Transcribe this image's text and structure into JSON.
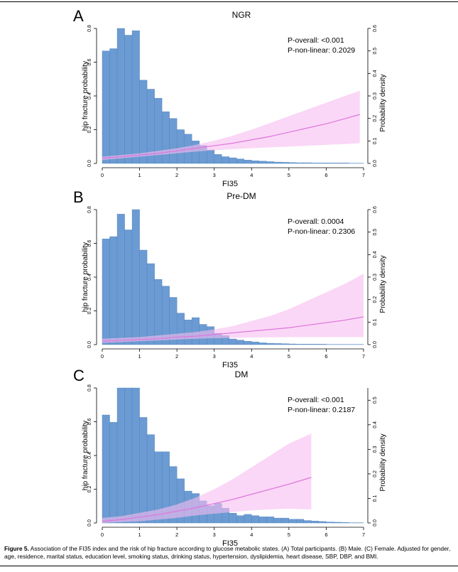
{
  "caption": {
    "label": "Figure 5.",
    "text": "Association of the FI35 index and the risk of hip fracture according to glucose metabolic states. (A) Total participants. (B) Male. (C) Female. Adjusted for gender, age, residence, marital status, education level, smoking status, drinking status, hypertension, dyslipidemia, heart disease, SBP, DBP, and BMI."
  },
  "colors": {
    "bar": "#6b9bd2",
    "bar_edge": "#4d7fbc",
    "band": "#f7bdf0",
    "line": "#dd77dd"
  },
  "chart_data": [
    {
      "panel": "A",
      "title": "NGR",
      "type": "bar+line",
      "xlabel": "FI35",
      "ylabel": "hip fracture probability",
      "y2label": "Probability density",
      "xticks": [
        "0",
        "1",
        "2",
        "3",
        "4",
        "5",
        "6",
        "7"
      ],
      "yticks": [
        "0.0",
        "0.2",
        "0.4",
        "0.6",
        "0.8"
      ],
      "y2ticks": [
        "0.0",
        "0.1",
        "0.2",
        "0.3",
        "0.4",
        "0.5",
        "0.6"
      ],
      "xlim": [
        0,
        7
      ],
      "ylim": [
        0,
        0.8
      ],
      "y2lim": [
        0,
        0.6
      ],
      "annotations": [
        "P-overall: <0.001",
        "P-non-linear: 0.2029"
      ],
      "bin_width": 0.2,
      "histogram_density": [
        0.5,
        0.51,
        0.6,
        0.57,
        0.59,
        0.37,
        0.33,
        0.29,
        0.23,
        0.2,
        0.15,
        0.13,
        0.1,
        0.08,
        0.06,
        0.04,
        0.03,
        0.025,
        0.02,
        0.015,
        0.012,
        0.01,
        0.008,
        0.006,
        0.005,
        0.004,
        0.003,
        0.003,
        0.002,
        0.002,
        0.002,
        0.002,
        0.002,
        0.001,
        0.001
      ],
      "curve": {
        "x": [
          0,
          0.5,
          1,
          1.5,
          2,
          2.5,
          3,
          3.5,
          4,
          4.5,
          5,
          5.5,
          6,
          6.5,
          6.9
        ],
        "estimate": [
          0.03,
          0.04,
          0.05,
          0.06,
          0.075,
          0.09,
          0.105,
          0.12,
          0.14,
          0.16,
          0.185,
          0.21,
          0.235,
          0.265,
          0.29
        ],
        "lower": [
          0.02,
          0.03,
          0.04,
          0.05,
          0.06,
          0.07,
          0.078,
          0.085,
          0.09,
          0.095,
          0.1,
          0.105,
          0.11,
          0.115,
          0.12
        ],
        "upper": [
          0.04,
          0.05,
          0.06,
          0.075,
          0.09,
          0.11,
          0.135,
          0.165,
          0.2,
          0.24,
          0.28,
          0.32,
          0.36,
          0.4,
          0.43
        ]
      }
    },
    {
      "panel": "B",
      "title": "Pre-DM",
      "type": "bar+line",
      "xlabel": "FI35",
      "ylabel": "hip fracture probability",
      "y2label": "Probability density",
      "xticks": [
        "0",
        "1",
        "2",
        "3",
        "4",
        "5",
        "6",
        "7"
      ],
      "yticks": [
        "0.0",
        "0.2",
        "0.4",
        "0.6",
        "0.8"
      ],
      "y2ticks": [
        "0.0",
        "0.1",
        "0.2",
        "0.3",
        "0.4",
        "0.5",
        "0.6"
      ],
      "xlim": [
        0,
        7
      ],
      "ylim": [
        0,
        0.8
      ],
      "y2lim": [
        0,
        0.6
      ],
      "annotations": [
        "P-overall: 0.0004",
        "P-non-linear: 0.2306"
      ],
      "bin_width": 0.2,
      "histogram_density": [
        0.47,
        0.48,
        0.58,
        0.51,
        0.6,
        0.42,
        0.36,
        0.29,
        0.26,
        0.21,
        0.14,
        0.11,
        0.12,
        0.09,
        0.08,
        0.05,
        0.04,
        0.025,
        0.02,
        0.015,
        0.012,
        0.008,
        0.006,
        0.005,
        0.004,
        0.003,
        0.002,
        0.002,
        0.002,
        0.002,
        0.001,
        0.001,
        0.001,
        0.001,
        0.001
      ],
      "curve": {
        "x": [
          0,
          0.5,
          1,
          1.5,
          2,
          2.5,
          3,
          3.5,
          4,
          4.5,
          5,
          5.5,
          6,
          6.5,
          7
        ],
        "estimate": [
          0.02,
          0.025,
          0.03,
          0.035,
          0.045,
          0.05,
          0.06,
          0.07,
          0.08,
          0.09,
          0.1,
          0.115,
          0.13,
          0.145,
          0.165
        ],
        "lower": [
          0.01,
          0.015,
          0.02,
          0.025,
          0.03,
          0.035,
          0.038,
          0.04,
          0.042,
          0.043,
          0.044,
          0.044,
          0.045,
          0.045,
          0.045
        ],
        "upper": [
          0.035,
          0.04,
          0.045,
          0.055,
          0.065,
          0.075,
          0.09,
          0.11,
          0.14,
          0.17,
          0.21,
          0.26,
          0.31,
          0.36,
          0.42
        ]
      }
    },
    {
      "panel": "C",
      "title": "DM",
      "type": "bar+line",
      "xlabel": "FI35",
      "ylabel": "hip fracture probability",
      "y2label": "Probability density",
      "xticks": [
        "0",
        "1",
        "2",
        "3",
        "4",
        "5",
        "6",
        "7"
      ],
      "yticks": [
        "0.0",
        "0.2",
        "0.4",
        "0.6",
        "0.8"
      ],
      "y2ticks": [
        "0.0",
        "0.1",
        "0.2",
        "0.3",
        "0.4",
        "0.5"
      ],
      "xlim": [
        0,
        7
      ],
      "ylim": [
        0,
        0.8
      ],
      "y2lim": [
        0,
        0.55
      ],
      "annotations": [
        "P-overall: <0.001",
        "P-non-linear: 0.2187"
      ],
      "bin_width": 0.2,
      "histogram_density": [
        0.44,
        0.41,
        0.55,
        0.55,
        0.55,
        0.43,
        0.36,
        0.29,
        0.29,
        0.23,
        0.18,
        0.13,
        0.12,
        0.09,
        0.07,
        0.08,
        0.06,
        0.04,
        0.03,
        0.035,
        0.03,
        0.025,
        0.025,
        0.02,
        0.02,
        0.015,
        0.015,
        0.01,
        0.008,
        0.006,
        0.004,
        0.003,
        0.002,
        0.001,
        0.001
      ],
      "curve": {
        "x": [
          0,
          0.5,
          1,
          1.5,
          2,
          2.5,
          3,
          3.5,
          4,
          4.5,
          5,
          5.6
        ],
        "estimate": [
          0.01,
          0.02,
          0.035,
          0.05,
          0.07,
          0.09,
          0.115,
          0.14,
          0.17,
          0.2,
          0.23,
          0.27
        ],
        "lower": [
          0.0,
          0.005,
          0.01,
          0.02,
          0.03,
          0.045,
          0.055,
          0.065,
          0.075,
          0.08,
          0.085,
          0.08
        ],
        "upper": [
          0.03,
          0.04,
          0.06,
          0.08,
          0.11,
          0.15,
          0.2,
          0.26,
          0.33,
          0.4,
          0.47,
          0.53
        ]
      }
    }
  ]
}
